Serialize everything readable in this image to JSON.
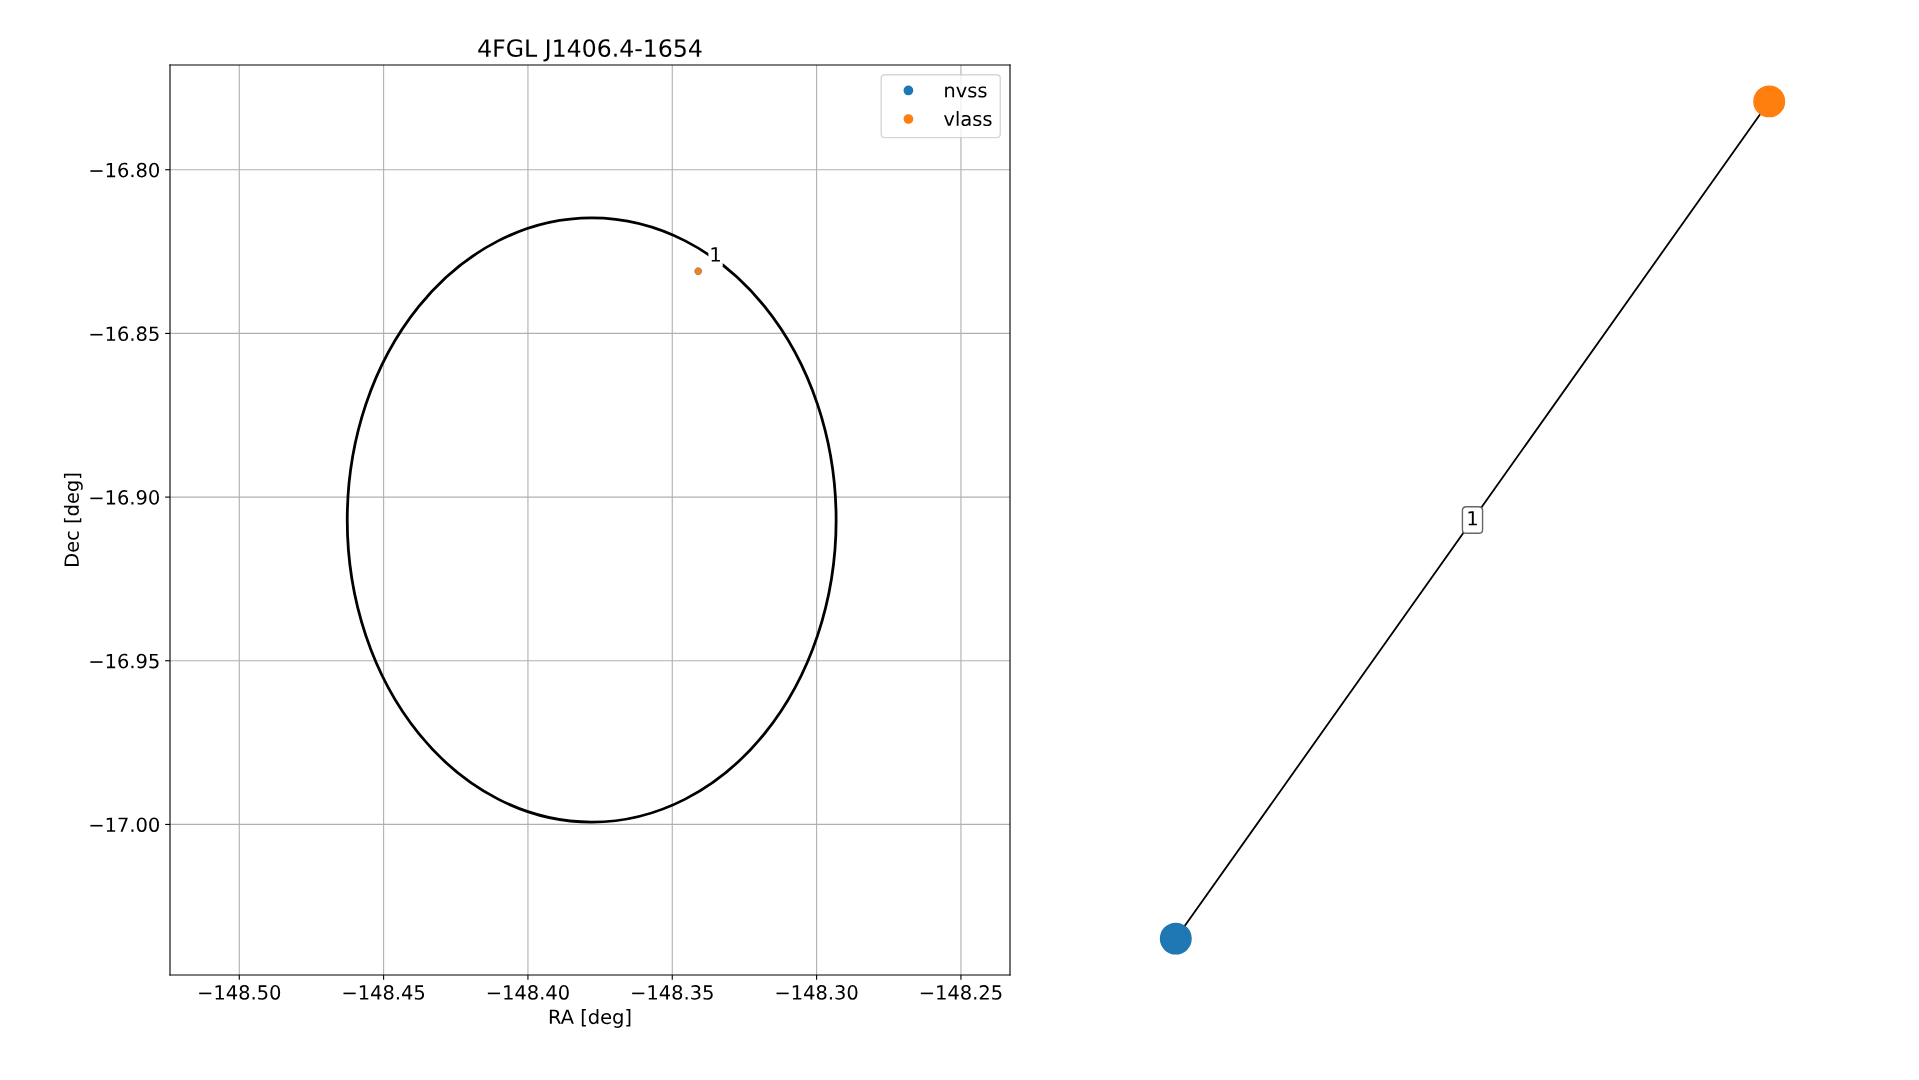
{
  "chart_data": [
    {
      "type": "line",
      "title": "4FGL J1406.4-1654",
      "xlabel": "RA [deg]",
      "ylabel": "Dec [deg]",
      "xlim": [
        -148.524,
        -148.233
      ],
      "ylim": [
        -17.046,
        -16.768
      ],
      "xticks": [
        {
          "value": -148.5,
          "label": "−148.50"
        },
        {
          "value": -148.45,
          "label": "−148.45"
        },
        {
          "value": -148.4,
          "label": "−148.40"
        },
        {
          "value": -148.35,
          "label": "−148.35"
        },
        {
          "value": -148.3,
          "label": "−148.30"
        },
        {
          "value": -148.25,
          "label": "−148.25"
        }
      ],
      "yticks": [
        {
          "value": -16.8,
          "label": "−16.80"
        },
        {
          "value": -16.85,
          "label": "−16.85"
        },
        {
          "value": -16.9,
          "label": "−16.90"
        },
        {
          "value": -16.95,
          "label": "−16.95"
        },
        {
          "value": -17.0,
          "label": "−17.00"
        }
      ],
      "grid": true,
      "legend": "top right",
      "series": [
        {
          "type": "scatter",
          "marker": "circle",
          "name": "nvss",
          "color": "#1f77b4",
          "x": [
            null
          ],
          "values": [
            null
          ]
        },
        {
          "type": "scatter",
          "marker": "circle",
          "name": "vlass",
          "color": "#ff7f0e",
          "x": [
            -148.341
          ],
          "values": [
            -16.831
          ]
        }
      ],
      "annotations": [
        {
          "text": "1",
          "x": -148.341,
          "y": -16.831
        }
      ]
    },
    {
      "type": "other",
      "series": [
        {
          "color": "#1f77b4"
        },
        {
          "color": "#ff7f0e"
        }
      ],
      "annotations": [
        "1"
      ]
    }
  ]
}
